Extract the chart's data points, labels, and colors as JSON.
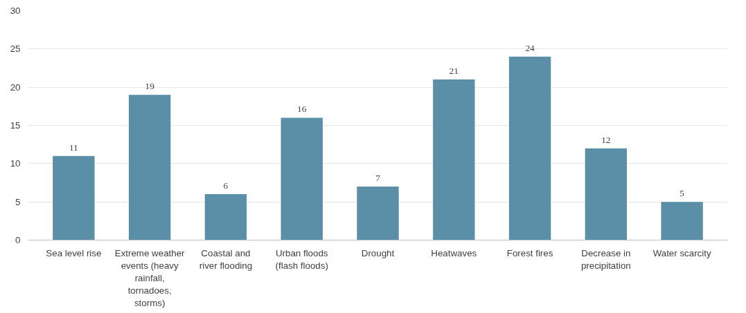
{
  "chart_data": {
    "type": "bar",
    "categories": [
      "Sea level rise",
      "Extreme weather events (heavy rainfall, tornadoes, storms)",
      "Coastal and river flooding",
      "Urban floods (flash floods)",
      "Drought",
      "Heatwaves",
      "Forest fires",
      "Decrease in precipitation",
      "Water scarcity"
    ],
    "values": [
      11,
      19,
      6,
      16,
      7,
      21,
      24,
      12,
      5
    ],
    "color": "#5b8fa8",
    "ylim": [
      0,
      30
    ],
    "yticks": [
      0,
      5,
      10,
      15,
      20,
      25,
      30
    ],
    "grid": "y",
    "data_labels": true
  }
}
